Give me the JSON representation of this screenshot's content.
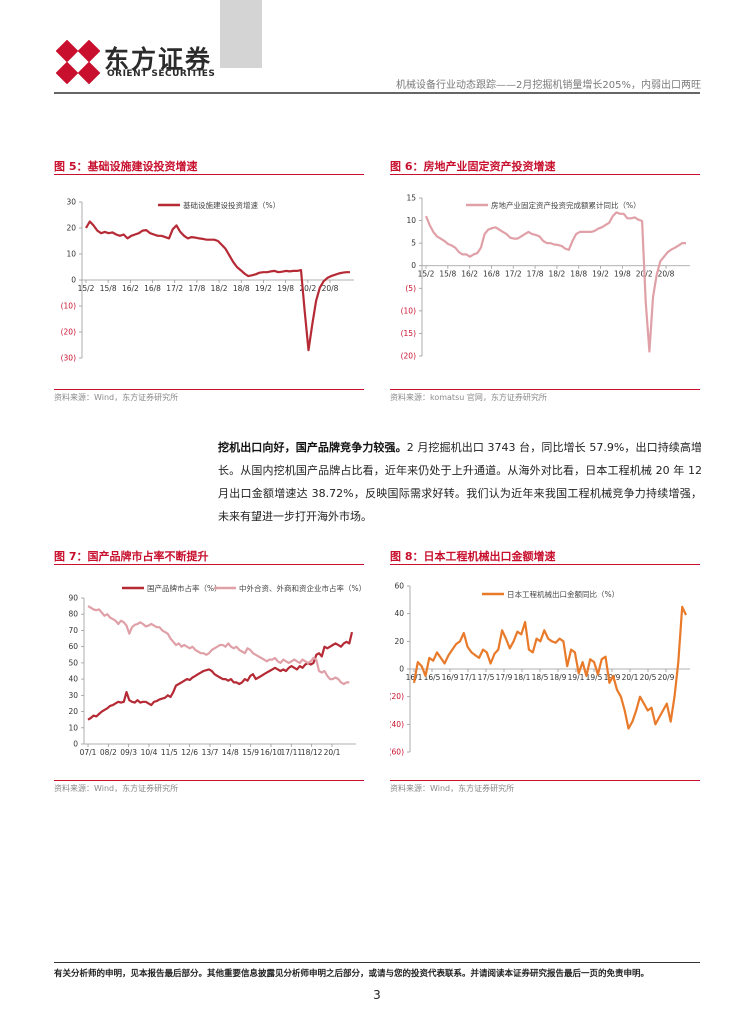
{
  "header": {
    "logo_cn": "东方证券",
    "logo_en": "ORIENT SECURITIES",
    "report_title": "机械设备行业动态跟踪——2月挖掘机销量增长205%，内弱出口两旺"
  },
  "figures": {
    "fig5": {
      "title": "图 5：基础设施建设投资增速",
      "source": "资料来源：Wind，东方证券研究所"
    },
    "fig6": {
      "title": "图 6：房地产业固定资产投资增速",
      "source": "资料来源：komatsu 官网，东方证券研究所"
    },
    "fig7": {
      "title": "图 7：国产品牌市占率不断提升",
      "source": "资料来源：Wind，东方证券研究所"
    },
    "fig8": {
      "title": "图 8：日本工程机械出口金额增速",
      "source": "资料来源：Wind，东方证券研究所"
    }
  },
  "body": {
    "lead": "挖机出口向好，国产品牌竞争力较强。",
    "text": "2 月挖掘机出口 3743 台，同比增长 57.9%，出口持续高增长。从国内挖机国产品牌占比看，近年来仍处于上升通道。从海外对比看，日本工程机械 20 年 12 月出口金额增速达 38.72%，反映国际需求好转。我们认为近年来我国工程机械竞争力持续增强，未来有望进一步打开海外市场。"
  },
  "footer": {
    "disclaimer": "有关分析师的申明，见本报告最后部分。其他重要信息披露见分析师申明之后部分，或请与您的投资代表联系。并请阅读本证券研究报告最后一页的免责申明。",
    "page_number": "3"
  },
  "colors": {
    "brand_red": "#c8102e",
    "series_dark": "#b52a35",
    "series_light": "#e0a0a8",
    "series_orange": "#e87a2a"
  },
  "chart_data": [
    {
      "id": "fig5",
      "type": "line",
      "ylim": [
        -30,
        30
      ],
      "yticks": [
        "30",
        "20",
        "10",
        "0",
        "(10)",
        "(20)",
        "(30)"
      ],
      "xticks": [
        "15/2",
        "15/8",
        "16/2",
        "16/8",
        "17/2",
        "17/8",
        "18/2",
        "18/8",
        "19/2",
        "19/8",
        "20/2",
        "20/8"
      ],
      "series": [
        {
          "name": "基础设施建设投资增速（%）",
          "color": "#b52a35",
          "values": [
            20,
            22.5,
            21,
            19,
            18,
            18.5,
            18,
            18.3,
            17.5,
            17,
            17.5,
            16,
            17,
            17.5,
            18,
            19,
            19.2,
            18,
            17.5,
            17,
            17,
            16.5,
            16,
            19.5,
            21,
            18.5,
            17,
            16,
            16.5,
            16.3,
            16,
            15.8,
            15.5,
            15.5,
            15.5,
            15,
            13.5,
            12,
            9.5,
            7,
            5,
            3.8,
            2.5,
            1.5,
            1.8,
            2.2,
            2.8,
            3,
            3,
            3.3,
            3.5,
            3,
            3.2,
            3.5,
            3.3,
            3.5,
            3.5,
            3.8,
            -12,
            -27,
            -17,
            -8,
            -3,
            -0.5,
            0.8,
            1.5,
            2,
            2.5,
            2.8,
            3,
            3
          ]
        }
      ]
    },
    {
      "id": "fig6",
      "type": "line",
      "ylim": [
        -20,
        15
      ],
      "yticks": [
        "15",
        "10",
        "5",
        "0",
        "(5)",
        "(10)",
        "(15)",
        "(20)"
      ],
      "xticks": [
        "15/2",
        "15/8",
        "16/2",
        "16/8",
        "17/2",
        "17/8",
        "18/2",
        "18/8",
        "19/2",
        "19/8",
        "20/2",
        "20/8"
      ],
      "series": [
        {
          "name": "房地产业固定资产投资完成额累计同比（%）",
          "color": "#e0a0a8",
          "values": [
            11,
            9,
            7.5,
            6.5,
            6,
            5.5,
            4.8,
            4.5,
            4,
            3,
            2.5,
            2.5,
            2,
            2.5,
            2.8,
            4,
            7,
            8,
            8.3,
            8.5,
            8,
            7.5,
            7,
            6.2,
            6,
            6,
            6.5,
            7,
            7.5,
            7,
            6.8,
            6.5,
            5.5,
            5,
            5,
            4.7,
            4.6,
            4.4,
            3.8,
            3.5,
            5.5,
            7,
            7.5,
            7.5,
            7.5,
            7.5,
            7.7,
            8.2,
            8.5,
            9,
            9.5,
            11,
            11.8,
            11.5,
            11.5,
            10.5,
            10.5,
            10.7,
            10.2,
            9.9,
            -8,
            -19,
            -7,
            -2,
            1,
            2,
            3,
            3.6,
            4,
            4.5,
            5,
            5
          ]
        }
      ]
    },
    {
      "id": "fig7",
      "type": "line",
      "ylim": [
        0,
        90
      ],
      "yticks": [
        "90",
        "80",
        "70",
        "60",
        "50",
        "40",
        "30",
        "20",
        "10",
        "0"
      ],
      "xticks": [
        "07/1",
        "08/2",
        "09/3",
        "10/4",
        "11/5",
        "12/6",
        "13/7",
        "14/8",
        "15/9",
        "16/10",
        "17/11",
        "18/12",
        "20/1"
      ],
      "series": [
        {
          "name": "国产品牌市占率（%）",
          "color": "#b52a35",
          "values": [
            15,
            16,
            17.5,
            17,
            18.5,
            20,
            21,
            22,
            23.5,
            24,
            25,
            26,
            25.5,
            26,
            32,
            27,
            26,
            25.5,
            27,
            25.5,
            26,
            26,
            25,
            24,
            26,
            26.5,
            27.5,
            28,
            28.5,
            30,
            29,
            32,
            36,
            37,
            38,
            39,
            40,
            39.5,
            41,
            42,
            43,
            44,
            45,
            45.5,
            46,
            45,
            43,
            42,
            41,
            40,
            40,
            39,
            40,
            38,
            38,
            37,
            38,
            40,
            39,
            42,
            43,
            40,
            41,
            42,
            43,
            44,
            45,
            46,
            47,
            46,
            45,
            46,
            45,
            47,
            48,
            47,
            46,
            48,
            47,
            49,
            50,
            49,
            50,
            55,
            56,
            54,
            60,
            59,
            60,
            61,
            62,
            61,
            60,
            62,
            63,
            62,
            69
          ]
        },
        {
          "name": "中外合资、外商和资企业市占率（%）",
          "color": "#e0a0a8",
          "values": [
            85,
            84,
            83,
            82.5,
            83,
            81,
            79,
            80,
            78,
            77,
            76,
            74,
            76,
            75,
            73,
            68,
            72,
            73.5,
            74,
            75,
            74,
            72.5,
            73,
            74,
            73,
            72,
            72,
            70,
            69,
            68,
            65,
            63,
            61,
            62,
            60,
            61,
            60,
            59,
            60,
            58,
            57,
            56,
            56,
            55,
            56,
            58,
            59,
            60,
            61,
            61,
            60,
            62,
            60,
            59,
            60,
            58,
            57,
            56,
            59,
            58,
            56,
            55,
            54,
            53,
            52,
            51,
            52,
            52,
            53,
            51,
            50,
            52,
            51,
            50,
            51,
            52,
            51,
            50,
            52,
            51,
            50,
            51,
            53,
            52,
            45,
            44,
            45,
            42,
            40,
            40,
            41,
            40,
            38,
            37,
            38,
            38
          ]
        }
      ]
    },
    {
      "id": "fig8",
      "type": "line",
      "ylim": [
        -60,
        60
      ],
      "yticks": [
        "60",
        "40",
        "20",
        "0",
        "(20)",
        "(40)",
        "(60)"
      ],
      "xticks": [
        "16/1",
        "16/5",
        "16/9",
        "17/1",
        "17/5",
        "17/9",
        "18/1",
        "18/5",
        "18/9",
        "19/1",
        "19/5",
        "19/9",
        "20/1",
        "20/5",
        "20/9"
      ],
      "series": [
        {
          "name": "日本工程机械出口金额同比（%）",
          "color": "#e87a2a",
          "values": [
            -10,
            5,
            2,
            -5,
            8,
            6,
            12,
            8,
            4,
            10,
            14,
            18,
            20,
            26,
            16,
            12,
            10,
            8,
            14,
            12,
            4,
            11,
            14,
            28,
            22,
            15,
            20,
            27,
            25,
            34,
            14,
            12,
            22,
            20,
            28,
            22,
            20,
            19,
            22,
            20,
            2,
            14,
            12,
            -3,
            5,
            -5,
            7,
            5,
            -4,
            7,
            9,
            -10,
            -5,
            -15,
            -20,
            -30,
            -43,
            -38,
            -30,
            -20,
            -25,
            -30,
            -28,
            -40,
            -35,
            -30,
            -25,
            -38,
            -20,
            5,
            45,
            39
          ]
        }
      ]
    }
  ]
}
